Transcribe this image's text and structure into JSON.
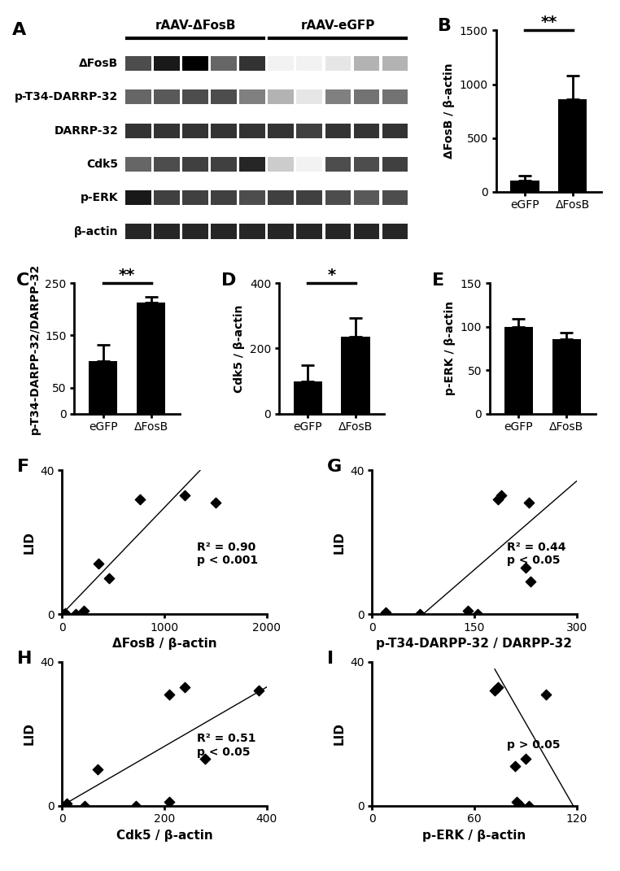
{
  "chart_data": [
    {
      "panel": "A",
      "type": "blot",
      "groups": [
        {
          "name": "rAAV-ΔFosB",
          "lanes": 5
        },
        {
          "name": "rAAV-eGFP",
          "lanes": 5
        }
      ],
      "rows": [
        "ΔFosB",
        "p-T34-DARRP-32",
        "DARRP-32",
        "Cdk5",
        "p-ERK",
        "β-actin"
      ],
      "cells": [
        [
          0.7,
          0.9,
          1.0,
          0.6,
          0.8,
          0.05,
          0.05,
          0.1,
          0.3,
          0.3
        ],
        [
          0.6,
          0.65,
          0.7,
          0.7,
          0.5,
          0.3,
          0.1,
          0.5,
          0.55,
          0.55
        ],
        [
          0.8,
          0.8,
          0.8,
          0.8,
          0.8,
          0.8,
          0.75,
          0.8,
          0.8,
          0.8
        ],
        [
          0.6,
          0.7,
          0.75,
          0.75,
          0.85,
          0.2,
          0.05,
          0.7,
          0.7,
          0.75
        ],
        [
          0.9,
          0.75,
          0.75,
          0.75,
          0.7,
          0.75,
          0.75,
          0.7,
          0.65,
          0.7
        ],
        [
          0.85,
          0.85,
          0.85,
          0.85,
          0.85,
          0.85,
          0.85,
          0.85,
          0.85,
          0.85
        ]
      ]
    },
    {
      "panel": "B",
      "type": "bar",
      "categories": [
        "eGFP",
        "ΔFosB"
      ],
      "values": [
        100,
        860
      ],
      "errors": [
        50,
        220
      ],
      "y_label": "ΔFosB / β-actin",
      "ylim": [
        0,
        1500
      ],
      "yticks": [
        0,
        500,
        1000,
        1500
      ],
      "significance": "**",
      "color": "#000000"
    },
    {
      "panel": "C",
      "type": "bar",
      "categories": [
        "eGFP",
        "ΔFosB"
      ],
      "values": [
        100,
        213
      ],
      "errors": [
        32,
        10
      ],
      "y_label": "p-T34-DARPP-32/DARPP-32",
      "ylim": [
        0,
        250
      ],
      "yticks": [
        0,
        50,
        150,
        250
      ],
      "significance": "**",
      "color": "#000000"
    },
    {
      "panel": "D",
      "type": "bar",
      "categories": [
        "eGFP",
        "ΔFosB"
      ],
      "values": [
        100,
        237
      ],
      "errors": [
        48,
        55
      ],
      "y_label": "Cdk5 / β-actin",
      "ylim": [
        0,
        400
      ],
      "yticks": [
        0,
        200,
        400
      ],
      "significance": "*",
      "color": "#000000"
    },
    {
      "panel": "E",
      "type": "bar",
      "categories": [
        "eGFP",
        "ΔFosB"
      ],
      "values": [
        100,
        86
      ],
      "errors": [
        9,
        7
      ],
      "y_label": "p-ERK / β-actin",
      "ylim": [
        0,
        150
      ],
      "yticks": [
        0,
        50,
        100,
        150
      ],
      "color": "#000000"
    },
    {
      "panel": "F",
      "type": "scatter",
      "x": [
        0,
        10,
        30,
        130,
        210,
        360,
        460,
        760,
        1200,
        1500
      ],
      "values": [
        0,
        0,
        0.3,
        0,
        1,
        14,
        10,
        32,
        33,
        31
      ],
      "x_label": "ΔFosB / β-actin",
      "y_label": "LID",
      "xlim": [
        0,
        2000
      ],
      "xticks": [
        0,
        1000,
        2000
      ],
      "ylim": [
        0,
        40
      ],
      "yticks": [
        0,
        40
      ],
      "fit_line": {
        "x": [
          0,
          1350
        ],
        "y": [
          0,
          40
        ]
      },
      "annotation": "R² = 0.90\np < 0.001",
      "marker": "diamond",
      "color": "#000000"
    },
    {
      "panel": "G",
      "type": "scatter",
      "x": [
        20,
        70,
        140,
        155,
        185,
        190,
        225,
        230,
        232
      ],
      "values": [
        0.5,
        0,
        1,
        0,
        32,
        33,
        13,
        31,
        9
      ],
      "x_label": "p-T34-DARPP-32 / DARPP-32",
      "y_label": "LID",
      "xlim": [
        0,
        300
      ],
      "xticks": [
        0,
        150,
        300
      ],
      "ylim": [
        0,
        40
      ],
      "yticks": [
        0,
        40
      ],
      "fit_line": {
        "x": [
          75,
          300
        ],
        "y": [
          0,
          37
        ]
      },
      "annotation": "R² = 0.44\np < 0.05",
      "marker": "diamond",
      "color": "#000000"
    },
    {
      "panel": "H",
      "type": "scatter",
      "x": [
        0,
        10,
        45,
        70,
        145,
        210,
        210,
        240,
        280,
        385
      ],
      "values": [
        0,
        0.5,
        0,
        10,
        0,
        1,
        31,
        33,
        13,
        32
      ],
      "x_label": "Cdk5 / β-actin",
      "y_label": "LID",
      "xlim": [
        0,
        400
      ],
      "xticks": [
        0,
        200,
        400
      ],
      "ylim": [
        0,
        40
      ],
      "yticks": [
        0,
        40
      ],
      "fit_line": {
        "x": [
          0,
          400
        ],
        "y": [
          0,
          33
        ]
      },
      "annotation": "R² = 0.51\np < 0.05",
      "marker": "diamond",
      "color": "#000000"
    },
    {
      "panel": "I",
      "type": "scatter",
      "x": [
        72,
        74,
        84,
        85,
        87,
        90,
        92,
        102
      ],
      "values": [
        32,
        33,
        11,
        1,
        0,
        13,
        0,
        31
      ],
      "x_label": "p-ERK / β-actin",
      "y_label": "LID",
      "xlim": [
        0,
        120
      ],
      "xticks": [
        0,
        60,
        120
      ],
      "ylim": [
        0,
        40
      ],
      "yticks": [
        0,
        40
      ],
      "fit_line": {
        "x": [
          72,
          118
        ],
        "y": [
          38,
          0
        ]
      },
      "annotation": "p > 0.05",
      "marker": "diamond",
      "color": "#000000"
    }
  ]
}
